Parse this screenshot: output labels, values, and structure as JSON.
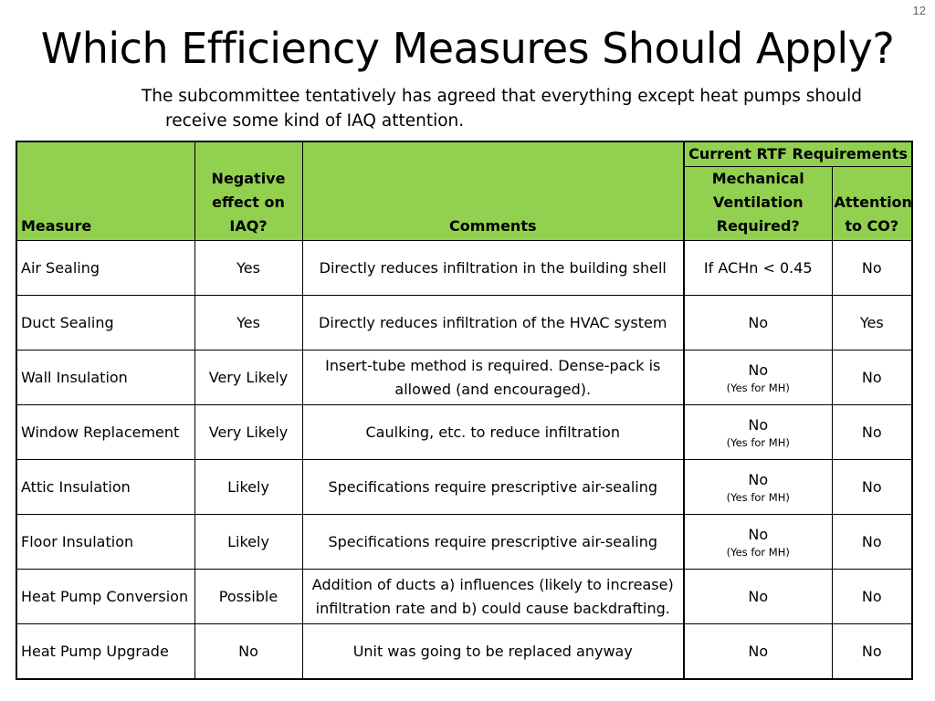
{
  "page_number": "12",
  "title": "Which Efficiency Measures Should Apply?",
  "subtitle": {
    "line1": "The subcommittee tentatively has agreed that everything except heat pumps should",
    "line2": "receive some kind of IAQ attention."
  },
  "table": {
    "headers": {
      "measure": "Measure",
      "negative_effect": "Negative effect on IAQ?",
      "comments": "Comments",
      "rtf_group": "Current RTF Requirements",
      "mechanical_ventilation": "Mechanical Ventilation Required?",
      "attention_co": "Attention to CO?"
    },
    "header_color": "#92d050",
    "rows": [
      {
        "measure": "Air Sealing",
        "effect": "Yes",
        "comment": "Directly reduces infiltration in the building shell",
        "vent": "If ACHn < 0.45",
        "vent_note": "",
        "co": "No"
      },
      {
        "measure": "Duct Sealing",
        "effect": "Yes",
        "comment": "Directly reduces infiltration of the HVAC system",
        "vent": "No",
        "vent_note": "",
        "co": "Yes"
      },
      {
        "measure": "Wall Insulation",
        "effect": "Very Likely",
        "comment": "Insert-tube method is required.  Dense-pack is allowed (and encouraged).",
        "vent": "No",
        "vent_note": "(Yes for MH)",
        "co": "No"
      },
      {
        "measure": "Window Replacement",
        "effect": "Very Likely",
        "comment": "Caulking, etc. to reduce infiltration",
        "vent": "No",
        "vent_note": "(Yes for MH)",
        "co": "No"
      },
      {
        "measure": "Attic Insulation",
        "effect": "Likely",
        "comment": "Specifications require prescriptive air-sealing",
        "vent": "No",
        "vent_note": "(Yes for MH)",
        "co": "No"
      },
      {
        "measure": "Floor Insulation",
        "effect": "Likely",
        "comment": "Specifications require prescriptive air-sealing",
        "vent": "No",
        "vent_note": "(Yes for MH)",
        "co": "No"
      },
      {
        "measure": "Heat Pump Conversion",
        "effect": "Possible",
        "comment": "Addition of ducts a) influences (likely to increase) infiltration rate and b) could cause backdrafting.",
        "vent": "No",
        "vent_note": "",
        "co": "No"
      },
      {
        "measure": "Heat Pump Upgrade",
        "effect": "No",
        "comment": "Unit was going to be replaced anyway",
        "vent": "No",
        "vent_note": "",
        "co": "No"
      }
    ]
  }
}
